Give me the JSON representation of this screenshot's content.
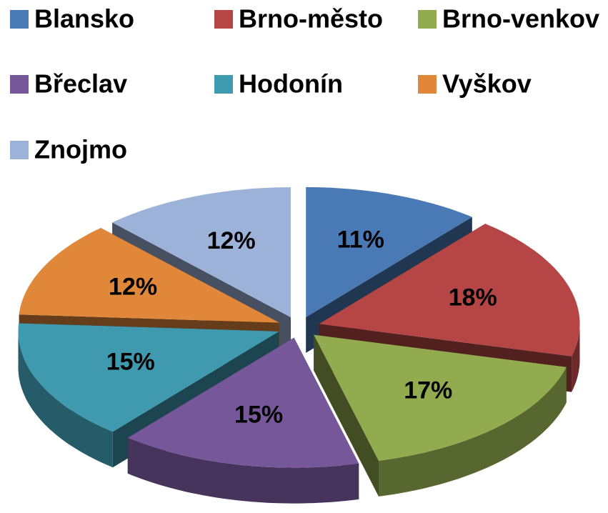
{
  "chart_data": {
    "type": "pie",
    "categories": [
      "Blansko",
      "Brno-město",
      "Brno-venkov",
      "Břeclav",
      "Hodonín",
      "Vyškov",
      "Znojmo"
    ],
    "values": [
      11,
      18,
      17,
      15,
      15,
      12,
      12
    ],
    "value_labels": [
      "11%",
      "18%",
      "17%",
      "15%",
      "15%",
      "12%",
      "12%"
    ],
    "colors": [
      "#4a7ab5",
      "#b54645",
      "#92ab4e",
      "#76579a",
      "#3f9ab0",
      "#e0873a",
      "#9db2d8"
    ],
    "legend": "top"
  }
}
